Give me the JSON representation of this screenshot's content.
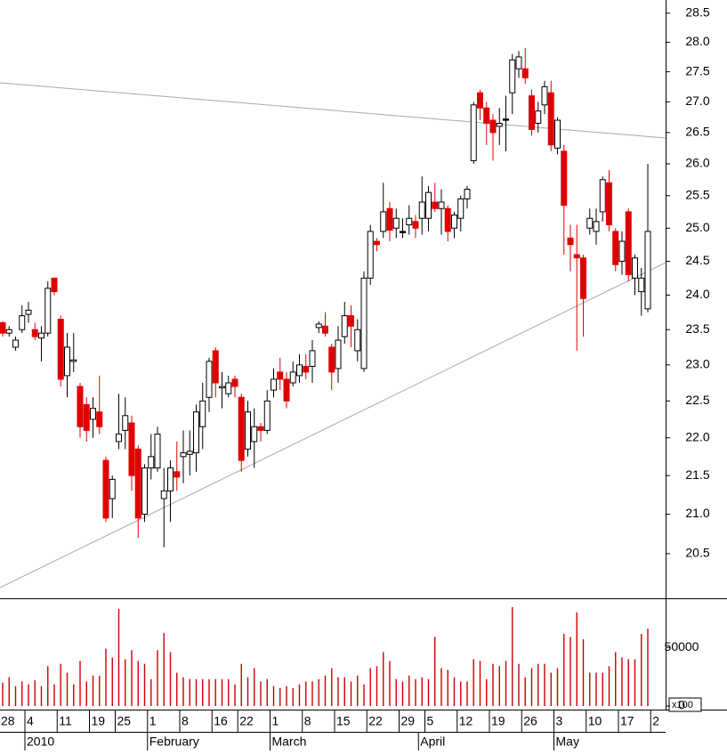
{
  "chart_data": [
    {
      "type": "candlestick",
      "log": true,
      "ylim": [
        19.95,
        28.73
      ],
      "yticks": [
        20.5,
        {
          "value": 21,
          "label": "21.0"
        },
        21.5,
        {
          "value": 22,
          "label": "22.0"
        },
        22.5,
        {
          "value": 23,
          "label": "23.0"
        },
        23.5,
        {
          "value": 24,
          "label": "24.0"
        },
        24.5,
        {
          "value": 25,
          "label": "25.0"
        },
        25.5,
        {
          "value": 26,
          "label": "26.0"
        },
        26.5,
        {
          "value": 27,
          "label": "27.0"
        },
        27.5,
        {
          "value": 28,
          "label": "28.0"
        },
        28.5
      ],
      "up_color": "#ffffff",
      "down_color": "#e00000",
      "flat_color": "#000000",
      "categories": [
        "28",
        null,
        null,
        null,
        "4",
        null,
        null,
        null,
        null,
        "11",
        null,
        null,
        null,
        null,
        "19",
        null,
        null,
        null,
        "25",
        null,
        null,
        null,
        null,
        "1",
        null,
        null,
        null,
        null,
        "8",
        null,
        null,
        null,
        null,
        "16",
        null,
        null,
        null,
        "22",
        null,
        null,
        null,
        null,
        "1",
        null,
        null,
        null,
        null,
        "8",
        null,
        null,
        null,
        null,
        "15",
        null,
        null,
        null,
        null,
        "22",
        null,
        null,
        null,
        null,
        "29",
        null,
        null,
        null,
        "5",
        null,
        null,
        null,
        null,
        "12",
        null,
        null,
        null,
        null,
        "19",
        null,
        null,
        null,
        null,
        "26",
        null,
        null,
        null,
        null,
        "3",
        null,
        null,
        null,
        null,
        "10",
        null,
        null,
        null,
        null,
        "17",
        null,
        null,
        null,
        null,
        "2"
      ],
      "months": [
        null,
        null,
        null,
        null,
        "2010",
        null,
        null,
        null,
        null,
        null,
        null,
        null,
        null,
        null,
        null,
        null,
        null,
        null,
        null,
        null,
        null,
        null,
        null,
        "February",
        null,
        null,
        null,
        null,
        null,
        null,
        null,
        null,
        null,
        null,
        null,
        null,
        null,
        null,
        null,
        null,
        null,
        null,
        "March",
        null,
        null,
        null,
        null,
        null,
        null,
        null,
        null,
        null,
        null,
        null,
        null,
        null,
        null,
        null,
        null,
        null,
        null,
        null,
        null,
        null,
        null,
        "April",
        null,
        null,
        null,
        null,
        null,
        null,
        null,
        null,
        null,
        null,
        null,
        null,
        null,
        null,
        null,
        null,
        null,
        null,
        null,
        null,
        "May",
        null,
        null,
        null,
        null,
        null,
        null,
        null,
        null,
        null,
        null,
        null,
        null,
        null,
        null,
        null
      ],
      "open": [
        23.6,
        23.45,
        23.25,
        23.5,
        23.72,
        23.5,
        23.38,
        23.45,
        24.25,
        23.65,
        22.85,
        23.05,
        22.7,
        22.45,
        22.25,
        22.35,
        21.7,
        21.2,
        21.95,
        22.1,
        22.2,
        21.85,
        21.0,
        21.6,
        21.6,
        21.2,
        21.3,
        21.55,
        21.75,
        21.78,
        21.8,
        22.15,
        22.55,
        23.2,
        22.68,
        22.6,
        22.8,
        22.55,
        21.85,
        21.95,
        22.15,
        22.1,
        22.65,
        22.9,
        22.8,
        22.75,
        22.85,
        22.98,
        22.98,
        23.53,
        23.55,
        23.25,
        22.95,
        23.4,
        23.7,
        23.2,
        22.95,
        24.25,
        24.8,
        24.95,
        25.3,
        25.0,
        24.95,
        25.05,
        25.1,
        25.15,
        25.15,
        25.4,
        25.3,
        25.3,
        25.0,
        25.15,
        25.45,
        26.05,
        27.15,
        26.9,
        26.7,
        26.6,
        26.72,
        27.15,
        27.55,
        27.55,
        27.1,
        26.65,
        26.95,
        27.15,
        26.25,
        26.2,
        24.85,
        24.6,
        24.55,
        25.0,
        24.95,
        25.25,
        25.7,
        24.95,
        24.5,
        25.25,
        24.25,
        24.05,
        23.8,
        null
      ],
      "high": [
        23.62,
        23.55,
        23.4,
        23.85,
        23.9,
        23.6,
        23.55,
        24.2,
        24.25,
        23.7,
        23.45,
        23.45,
        22.75,
        22.55,
        22.55,
        22.85,
        21.75,
        21.5,
        22.6,
        22.55,
        22.3,
        21.9,
        21.65,
        22.05,
        22.15,
        21.6,
        21.7,
        21.95,
        22.1,
        22.1,
        22.45,
        22.75,
        23.1,
        23.25,
        22.9,
        22.85,
        22.85,
        22.6,
        22.5,
        22.4,
        22.2,
        22.65,
        22.95,
        23.1,
        22.9,
        23.05,
        23.15,
        23.15,
        23.35,
        23.62,
        23.75,
        23.3,
        23.55,
        23.9,
        23.85,
        23.65,
        24.35,
        25.05,
        24.85,
        25.7,
        25.4,
        25.3,
        25.15,
        25.35,
        25.2,
        25.8,
        25.65,
        25.7,
        25.6,
        25.35,
        25.25,
        25.5,
        25.65,
        27.0,
        27.2,
        27.0,
        26.8,
        26.9,
        27.1,
        27.8,
        27.85,
        27.9,
        27.2,
        27.0,
        27.35,
        27.35,
        26.75,
        26.3,
        25.05,
        25.05,
        24.6,
        25.3,
        25.3,
        25.8,
        25.9,
        25.0,
        24.95,
        25.3,
        24.6,
        24.4,
        26.0,
        null
      ],
      "low": [
        23.4,
        23.4,
        23.2,
        23.45,
        23.6,
        23.35,
        23.05,
        23.4,
        24.0,
        22.7,
        22.55,
        22.9,
        22.0,
        21.95,
        22.0,
        22.05,
        20.9,
        20.95,
        21.85,
        21.85,
        21.3,
        20.7,
        20.9,
        21.45,
        21.55,
        20.58,
        20.9,
        21.3,
        21.4,
        21.5,
        21.55,
        21.85,
        22.35,
        22.55,
        22.4,
        22.55,
        22.55,
        21.55,
        21.75,
        21.6,
        21.95,
        22.05,
        22.55,
        22.65,
        22.4,
        22.7,
        22.75,
        22.8,
        22.75,
        23.45,
        23.4,
        22.65,
        22.75,
        23.3,
        23.25,
        23.05,
        22.9,
        24.15,
        24.65,
        24.85,
        24.8,
        24.85,
        24.85,
        24.9,
        24.85,
        24.9,
        24.95,
        25.25,
        24.9,
        24.8,
        24.85,
        24.95,
        25.3,
        26.0,
        26.7,
        26.3,
        26.05,
        26.3,
        26.2,
        26.8,
        27.4,
        27.3,
        26.45,
        26.5,
        26.8,
        26.2,
        26.15,
        24.6,
        24.35,
        23.2,
        23.4,
        24.9,
        24.75,
        25.1,
        24.95,
        24.35,
        24.3,
        24.2,
        24.0,
        23.7,
        23.75,
        null
      ],
      "close": [
        23.45,
        23.5,
        23.35,
        23.7,
        23.78,
        23.4,
        23.45,
        24.1,
        24.05,
        22.8,
        23.25,
        23.07,
        22.15,
        22.1,
        22.4,
        22.15,
        20.95,
        21.45,
        22.05,
        22.3,
        21.5,
        20.95,
        21.6,
        21.75,
        22.05,
        21.3,
        21.6,
        21.48,
        21.8,
        21.82,
        22.35,
        22.5,
        23.05,
        22.75,
        22.7,
        22.75,
        22.7,
        21.7,
        22.35,
        22.15,
        22.1,
        22.5,
        22.8,
        22.8,
        22.5,
        22.9,
        23.0,
        22.9,
        23.2,
        23.58,
        23.45,
        22.9,
        23.35,
        23.7,
        23.55,
        23.5,
        24.25,
        24.95,
        24.75,
        25.25,
        24.97,
        25.15,
        24.95,
        25.15,
        25.0,
        25.4,
        25.55,
        25.3,
        25.4,
        24.95,
        25.2,
        25.45,
        25.6,
        26.95,
        26.9,
        26.65,
        26.5,
        26.65,
        26.72,
        27.7,
        27.75,
        27.4,
        26.55,
        26.85,
        27.25,
        26.3,
        26.7,
        25.35,
        24.75,
        24.55,
        23.95,
        25.15,
        25.1,
        25.75,
        25.05,
        24.45,
        24.8,
        24.3,
        24.55,
        24.25,
        24.95,
        null
      ]
    },
    {
      "type": "bar",
      "color": "#cc0000",
      "ylim": [
        0,
        92000
      ],
      "yticks": [
        0,
        50000
      ],
      "unit_label": "x100",
      "values": [
        20000,
        24600,
        17000,
        21000,
        18500,
        22000,
        17000,
        34000,
        18500,
        36000,
        28500,
        18500,
        38500,
        21000,
        26000,
        26000,
        49000,
        41500,
        83000,
        40000,
        47700,
        38500,
        36000,
        23000,
        47700,
        62300,
        46000,
        28500,
        24600,
        23000,
        23000,
        23000,
        23000,
        23000,
        23000,
        23000,
        18500,
        36000,
        24600,
        32300,
        21000,
        23000,
        17000,
        15400,
        17000,
        15400,
        18500,
        21000,
        21000,
        23000,
        26000,
        32300,
        24600,
        24600,
        21000,
        26000,
        18500,
        32300,
        34000,
        46000,
        38500,
        23000,
        21000,
        26000,
        23000,
        24600,
        23000,
        59000,
        32300,
        30800,
        24600,
        21000,
        21000,
        40000,
        38500,
        23000,
        36000,
        34000,
        38500,
        84500,
        36000,
        24600,
        32300,
        36000,
        36000,
        28500,
        32300,
        61500,
        59000,
        80000,
        57000,
        28500,
        28500,
        28500,
        34000,
        46000,
        41500,
        40000,
        40000,
        61500,
        66000,
        null
      ]
    }
  ]
}
